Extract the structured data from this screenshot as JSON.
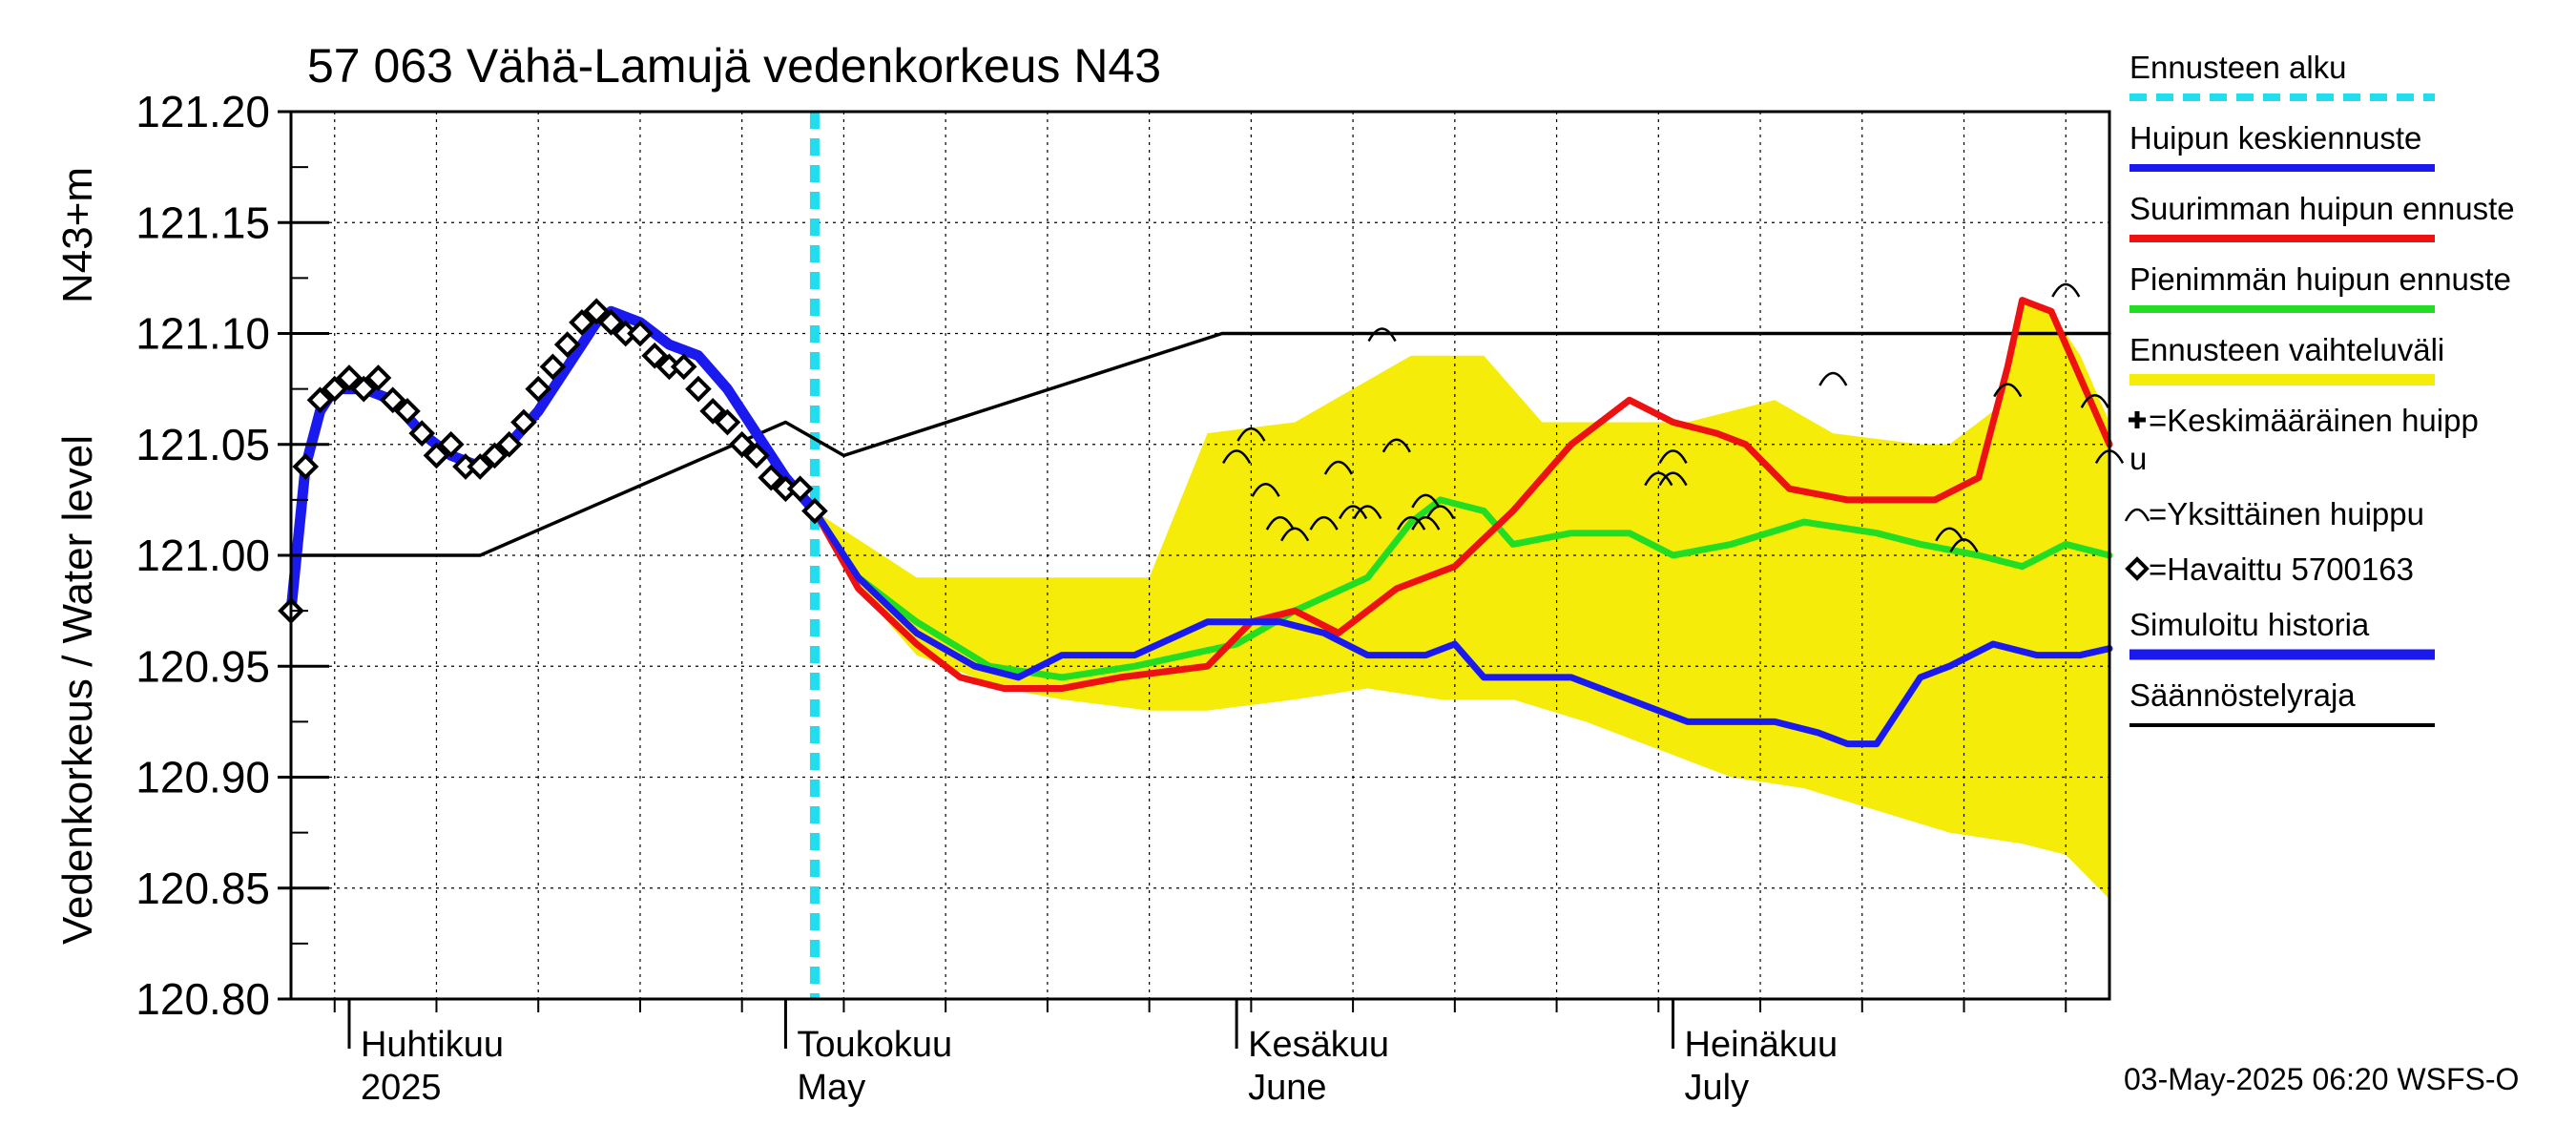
{
  "chart_data": {
    "type": "line",
    "title": "57 063 Vähä-Lamujä vedenkorkeus N43",
    "ylabel_main": "Vedenkorkeus / Water level",
    "ylabel_unit": "N43+m",
    "ylim": [
      120.8,
      121.2
    ],
    "yticks": [
      "121.20",
      "121.15",
      "121.10",
      "121.05",
      "121.00",
      "120.95",
      "120.90",
      "120.85",
      "120.80"
    ],
    "x_start": "2025-03-28",
    "x_end": "2025-07-31",
    "months": [
      {
        "fi": "Huhtikuu",
        "en": "2025",
        "date": "2025-04-01"
      },
      {
        "fi": "Toukokuu",
        "en": "May",
        "date": "2025-05-01"
      },
      {
        "fi": "Kesäkuu",
        "en": "June",
        "date": "2025-06-01"
      },
      {
        "fi": "Heinäkuu",
        "en": "July",
        "date": "2025-07-01"
      }
    ],
    "forecast_start": "2025-05-03",
    "grid": true,
    "legend": {
      "placement": "right",
      "items": [
        {
          "label": "Ennusteen alku",
          "color": "#22ddee",
          "style": "dashed"
        },
        {
          "label": "Huipun keskiennuste",
          "color": "#1a1aee",
          "style": "line"
        },
        {
          "label": "Suurimman huipun ennuste",
          "color": "#ee1111",
          "style": "line"
        },
        {
          "label": "Pienimmän huipun ennuste",
          "color": "#22dd22",
          "style": "line"
        },
        {
          "label": "Ennusteen vaihteluväli",
          "color": "#f5ec0a",
          "style": "band"
        },
        {
          "label": "=Keskimääräinen huipp",
          "label2": "u",
          "color": "#000000",
          "style": "plus"
        },
        {
          "label": "=Yksittäinen huippu",
          "color": "#000000",
          "style": "arc"
        },
        {
          "label": "=Havaittu 5700163",
          "color": "#000000",
          "style": "diamond"
        },
        {
          "label": "Simuloitu historia",
          "color": "#1a1aee",
          "style": "thick"
        },
        {
          "label": "Säännöstelyraja",
          "color": "#000000",
          "style": "line"
        }
      ]
    },
    "footer": "03-May-2025 06:20 WSFS-O",
    "series": [
      {
        "key": "regulation",
        "color": "#000000",
        "points": [
          [
            "2025-03-28",
            121.0
          ],
          [
            "2025-04-05",
            121.0
          ],
          [
            "2025-04-10",
            121.0
          ],
          [
            "2025-05-01",
            121.06
          ],
          [
            "2025-05-05",
            121.045
          ],
          [
            "2025-05-31",
            121.1
          ],
          [
            "2025-07-31",
            121.1
          ]
        ]
      },
      {
        "key": "simulated",
        "color": "#1a1aee",
        "points": [
          [
            "2025-03-28",
            120.975
          ],
          [
            "2025-03-29",
            121.04
          ],
          [
            "2025-03-30",
            121.065
          ],
          [
            "2025-03-31",
            121.075
          ],
          [
            "2025-04-02",
            121.075
          ],
          [
            "2025-04-04",
            121.07
          ],
          [
            "2025-04-06",
            121.055
          ],
          [
            "2025-04-08",
            121.045
          ],
          [
            "2025-04-10",
            121.04
          ],
          [
            "2025-04-12",
            121.05
          ],
          [
            "2025-04-14",
            121.065
          ],
          [
            "2025-04-16",
            121.085
          ],
          [
            "2025-04-18",
            121.105
          ],
          [
            "2025-04-19",
            121.11
          ],
          [
            "2025-04-21",
            121.105
          ],
          [
            "2025-04-23",
            121.095
          ],
          [
            "2025-04-25",
            121.09
          ],
          [
            "2025-04-27",
            121.075
          ],
          [
            "2025-04-29",
            121.055
          ],
          [
            "2025-05-01",
            121.035
          ],
          [
            "2025-05-03",
            121.02
          ]
        ]
      },
      {
        "key": "mean_peak",
        "color": "#1a1aee",
        "points": [
          [
            "2025-05-03",
            121.02
          ],
          [
            "2025-05-06",
            120.99
          ],
          [
            "2025-05-10",
            120.965
          ],
          [
            "2025-05-14",
            120.95
          ],
          [
            "2025-05-17",
            120.945
          ],
          [
            "2025-05-20",
            120.955
          ],
          [
            "2025-05-25",
            120.955
          ],
          [
            "2025-05-30",
            120.97
          ],
          [
            "2025-06-04",
            120.97
          ],
          [
            "2025-06-07",
            120.965
          ],
          [
            "2025-06-10",
            120.955
          ],
          [
            "2025-06-14",
            120.955
          ],
          [
            "2025-06-16",
            120.96
          ],
          [
            "2025-06-18",
            120.945
          ],
          [
            "2025-06-24",
            120.945
          ],
          [
            "2025-06-28",
            120.935
          ],
          [
            "2025-07-02",
            120.925
          ],
          [
            "2025-07-05",
            120.925
          ],
          [
            "2025-07-08",
            120.925
          ],
          [
            "2025-07-11",
            120.92
          ],
          [
            "2025-07-13",
            120.915
          ],
          [
            "2025-07-15",
            120.915
          ],
          [
            "2025-07-18",
            120.945
          ],
          [
            "2025-07-20",
            120.95
          ],
          [
            "2025-07-23",
            120.96
          ],
          [
            "2025-07-26",
            120.955
          ],
          [
            "2025-07-29",
            120.955
          ],
          [
            "2025-07-31",
            120.958
          ]
        ]
      },
      {
        "key": "max_peak",
        "color": "#ee1111",
        "points": [
          [
            "2025-05-03",
            121.02
          ],
          [
            "2025-05-06",
            120.985
          ],
          [
            "2025-05-10",
            120.96
          ],
          [
            "2025-05-13",
            120.945
          ],
          [
            "2025-05-16",
            120.94
          ],
          [
            "2025-05-20",
            120.94
          ],
          [
            "2025-05-24",
            120.945
          ],
          [
            "2025-05-30",
            120.95
          ],
          [
            "2025-06-02",
            120.97
          ],
          [
            "2025-06-05",
            120.975
          ],
          [
            "2025-06-08",
            120.965
          ],
          [
            "2025-06-12",
            120.985
          ],
          [
            "2025-06-16",
            120.995
          ],
          [
            "2025-06-20",
            121.02
          ],
          [
            "2025-06-24",
            121.05
          ],
          [
            "2025-06-28",
            121.07
          ],
          [
            "2025-07-01",
            121.06
          ],
          [
            "2025-07-04",
            121.055
          ],
          [
            "2025-07-06",
            121.05
          ],
          [
            "2025-07-09",
            121.03
          ],
          [
            "2025-07-13",
            121.025
          ],
          [
            "2025-07-17",
            121.025
          ],
          [
            "2025-07-19",
            121.025
          ],
          [
            "2025-07-22",
            121.035
          ],
          [
            "2025-07-24",
            121.085
          ],
          [
            "2025-07-25",
            121.115
          ],
          [
            "2025-07-27",
            121.11
          ],
          [
            "2025-07-31",
            121.05
          ]
        ]
      },
      {
        "key": "min_peak",
        "color": "#22dd22",
        "points": [
          [
            "2025-05-03",
            121.02
          ],
          [
            "2025-05-06",
            120.99
          ],
          [
            "2025-05-10",
            120.97
          ],
          [
            "2025-05-15",
            120.95
          ],
          [
            "2025-05-20",
            120.945
          ],
          [
            "2025-05-25",
            120.95
          ],
          [
            "2025-06-01",
            120.96
          ],
          [
            "2025-06-05",
            120.975
          ],
          [
            "2025-06-10",
            120.99
          ],
          [
            "2025-06-13",
            121.015
          ],
          [
            "2025-06-15",
            121.025
          ],
          [
            "2025-06-18",
            121.02
          ],
          [
            "2025-06-20",
            121.005
          ],
          [
            "2025-06-24",
            121.01
          ],
          [
            "2025-06-28",
            121.01
          ],
          [
            "2025-07-01",
            121.0
          ],
          [
            "2025-07-05",
            121.005
          ],
          [
            "2025-07-10",
            121.015
          ],
          [
            "2025-07-15",
            121.01
          ],
          [
            "2025-07-18",
            121.005
          ],
          [
            "2025-07-22",
            121.0
          ],
          [
            "2025-07-25",
            120.995
          ],
          [
            "2025-07-28",
            121.005
          ],
          [
            "2025-07-31",
            121.0
          ]
        ]
      }
    ],
    "band": {
      "color": "#f5ec0a",
      "upper": [
        [
          "2025-05-03",
          121.02
        ],
        [
          "2025-05-10",
          120.99
        ],
        [
          "2025-05-20",
          120.99
        ],
        [
          "2025-05-26",
          120.99
        ],
        [
          "2025-05-30",
          121.055
        ],
        [
          "2025-06-05",
          121.06
        ],
        [
          "2025-06-09",
          121.075
        ],
        [
          "2025-06-13",
          121.09
        ],
        [
          "2025-06-18",
          121.09
        ],
        [
          "2025-06-22",
          121.06
        ],
        [
          "2025-06-28",
          121.06
        ],
        [
          "2025-07-02",
          121.06
        ],
        [
          "2025-07-08",
          121.07
        ],
        [
          "2025-07-12",
          121.055
        ],
        [
          "2025-07-18",
          121.05
        ],
        [
          "2025-07-20",
          121.05
        ],
        [
          "2025-07-23",
          121.065
        ],
        [
          "2025-07-25",
          121.115
        ],
        [
          "2025-07-27",
          121.11
        ],
        [
          "2025-07-29",
          121.09
        ],
        [
          "2025-07-31",
          121.06
        ]
      ],
      "lower": [
        [
          "2025-05-03",
          121.02
        ],
        [
          "2025-05-06",
          120.985
        ],
        [
          "2025-05-10",
          120.955
        ],
        [
          "2025-05-16",
          120.94
        ],
        [
          "2025-05-20",
          120.935
        ],
        [
          "2025-05-26",
          120.93
        ],
        [
          "2025-05-30",
          120.93
        ],
        [
          "2025-06-05",
          120.935
        ],
        [
          "2025-06-10",
          120.94
        ],
        [
          "2025-06-15",
          120.935
        ],
        [
          "2025-06-20",
          120.935
        ],
        [
          "2025-06-25",
          120.925
        ],
        [
          "2025-07-01",
          120.91
        ],
        [
          "2025-07-05",
          120.9
        ],
        [
          "2025-07-10",
          120.895
        ],
        [
          "2025-07-15",
          120.885
        ],
        [
          "2025-07-20",
          120.875
        ],
        [
          "2025-07-25",
          120.87
        ],
        [
          "2025-07-28",
          120.865
        ],
        [
          "2025-07-31",
          120.845
        ]
      ]
    },
    "observed": [
      [
        "2025-03-28",
        120.975
      ],
      [
        "2025-03-29",
        121.04
      ],
      [
        "2025-03-30",
        121.07
      ],
      [
        "2025-03-31",
        121.075
      ],
      [
        "2025-04-01",
        121.08
      ],
      [
        "2025-04-02",
        121.075
      ],
      [
        "2025-04-03",
        121.08
      ],
      [
        "2025-04-04",
        121.07
      ],
      [
        "2025-04-05",
        121.065
      ],
      [
        "2025-04-06",
        121.055
      ],
      [
        "2025-04-07",
        121.045
      ],
      [
        "2025-04-08",
        121.05
      ],
      [
        "2025-04-09",
        121.04
      ],
      [
        "2025-04-10",
        121.04
      ],
      [
        "2025-04-11",
        121.045
      ],
      [
        "2025-04-12",
        121.05
      ],
      [
        "2025-04-13",
        121.06
      ],
      [
        "2025-04-14",
        121.075
      ],
      [
        "2025-04-15",
        121.085
      ],
      [
        "2025-04-16",
        121.095
      ],
      [
        "2025-04-17",
        121.105
      ],
      [
        "2025-04-18",
        121.11
      ],
      [
        "2025-04-19",
        121.105
      ],
      [
        "2025-04-20",
        121.1
      ],
      [
        "2025-04-21",
        121.1
      ],
      [
        "2025-04-22",
        121.09
      ],
      [
        "2025-04-23",
        121.085
      ],
      [
        "2025-04-24",
        121.085
      ],
      [
        "2025-04-25",
        121.075
      ],
      [
        "2025-04-26",
        121.065
      ],
      [
        "2025-04-27",
        121.06
      ],
      [
        "2025-04-28",
        121.05
      ],
      [
        "2025-04-29",
        121.045
      ],
      [
        "2025-04-30",
        121.035
      ],
      [
        "2025-05-01",
        121.03
      ],
      [
        "2025-05-02",
        121.03
      ],
      [
        "2025-05-03",
        121.02
      ]
    ],
    "single_peaks": [
      [
        "2025-06-01",
        121.045
      ],
      [
        "2025-06-02",
        121.055
      ],
      [
        "2025-06-03",
        121.03
      ],
      [
        "2025-06-04",
        121.015
      ],
      [
        "2025-06-05",
        121.01
      ],
      [
        "2025-06-07",
        121.015
      ],
      [
        "2025-06-08",
        121.04
      ],
      [
        "2025-06-09",
        121.02
      ],
      [
        "2025-06-10",
        121.02
      ],
      [
        "2025-06-11",
        121.1
      ],
      [
        "2025-06-12",
        121.05
      ],
      [
        "2025-06-13",
        121.015
      ],
      [
        "2025-06-14",
        121.025
      ],
      [
        "2025-06-14",
        121.015
      ],
      [
        "2025-06-15",
        121.02
      ],
      [
        "2025-06-30",
        121.035
      ],
      [
        "2025-07-01",
        121.045
      ],
      [
        "2025-07-01",
        121.035
      ],
      [
        "2025-07-12",
        121.08
      ],
      [
        "2025-07-20",
        121.01
      ],
      [
        "2025-07-21",
        121.005
      ],
      [
        "2025-07-24",
        121.075
      ],
      [
        "2025-07-28",
        121.12
      ],
      [
        "2025-07-30",
        121.07
      ],
      [
        "2025-07-31",
        121.045
      ]
    ]
  }
}
